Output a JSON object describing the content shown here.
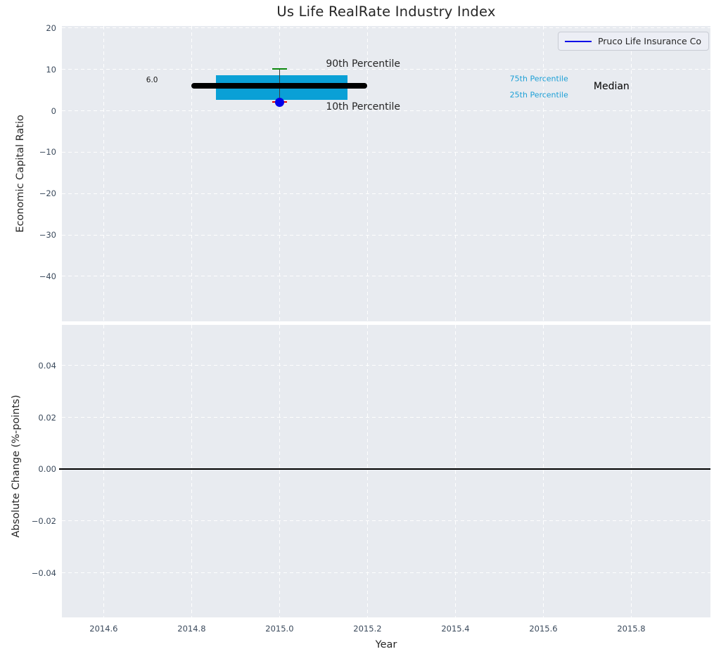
{
  "title": "Us Life RealRate Industry Index",
  "legend": {
    "label": "Pruco Life Insurance Co",
    "line_color": "#0000e8"
  },
  "colors": {
    "axes_background": "#e8ebf0",
    "grid": "#ffffff",
    "tick_label": "#3b4a5c",
    "text": "#262626",
    "box_fill": "#0aa0d6",
    "median_line": "#000000",
    "p90_cap": "#0f8a0f",
    "p10_cap": "#e10000",
    "whisker": "#3d3d3d",
    "company_marker": "#0000e8"
  },
  "chart_data": [
    {
      "type": "box",
      "panel": "top",
      "title": "Us Life RealRate Industry Index",
      "ylabel": "Economic Capital Ratio",
      "xlim": [
        2014.505,
        2015.98
      ],
      "ylim": [
        -50.9,
        20.5
      ],
      "xtick_values": [
        2014.6,
        2014.8,
        2015.0,
        2015.2,
        2015.4,
        2015.6,
        2015.8
      ],
      "xtick_labels": [
        "2014.6",
        "2014.8",
        "2015.0",
        "2015.2",
        "2015.4",
        "2015.6",
        "2015.8"
      ],
      "ytick_values": [
        20,
        10,
        0,
        -10,
        -20,
        -30,
        -40
      ],
      "ytick_labels": [
        "20",
        "10",
        "0",
        "−10",
        "−20",
        "−30",
        "−40"
      ],
      "grid": "white-dashed",
      "legend_position": "upper right",
      "box": {
        "x": 2015.0,
        "median": 6.0,
        "q1": 2.7,
        "q3": 8.6,
        "p10": 2.1,
        "p90": 10.1,
        "box_left": 2014.855,
        "box_right": 2015.155,
        "median_left": 2014.8,
        "median_right": 2015.2,
        "cap_half_width": 0.017
      },
      "company_point": {
        "name": "Pruco Life Insurance Co",
        "x": 2015.0,
        "y": 2.0
      },
      "annotations": [
        {
          "text": "6.0",
          "x": 2014.71,
          "y": 7.4,
          "color": "#1a1a1a",
          "size": 10.5
        },
        {
          "text": "90th Percentile",
          "x": 2015.19,
          "y": 11.3,
          "color": "#262626",
          "size": 14
        },
        {
          "text": "10th Percentile",
          "x": 2015.19,
          "y": 0.95,
          "color": "#262626",
          "size": 14
        },
        {
          "text": "75th Percentile",
          "x": 2015.59,
          "y": 7.75,
          "color": "#1b9fd6",
          "size": 11
        },
        {
          "text": "25th Percentile",
          "x": 2015.59,
          "y": 3.85,
          "color": "#1b9fd6",
          "size": 11
        },
        {
          "text": "Median",
          "x": 2015.755,
          "y": 5.9,
          "color": "#000000",
          "size": 14
        }
      ]
    },
    {
      "type": "line",
      "panel": "bottom",
      "ylabel": "Absolute Change (%-points)",
      "xlabel": "Year",
      "xlim": [
        2014.505,
        2015.98
      ],
      "ylim": [
        -0.0572,
        0.0557
      ],
      "xtick_values": [
        2014.6,
        2014.8,
        2015.0,
        2015.2,
        2015.4,
        2015.6,
        2015.8
      ],
      "xtick_labels": [
        "2014.6",
        "2014.8",
        "2015.0",
        "2015.2",
        "2015.4",
        "2015.6",
        "2015.8"
      ],
      "ytick_values": [
        0.04,
        0.02,
        0.0,
        -0.02,
        -0.04
      ],
      "ytick_labels": [
        "0.04",
        "0.02",
        "0.00",
        "−0.02",
        "−0.04"
      ],
      "grid": "white-dashed",
      "series": [
        {
          "name": "zero-line",
          "x": [
            2014.505,
            2015.98
          ],
          "y": [
            0.0,
            0.0
          ],
          "color": "#000000",
          "width": 2
        }
      ]
    }
  ]
}
